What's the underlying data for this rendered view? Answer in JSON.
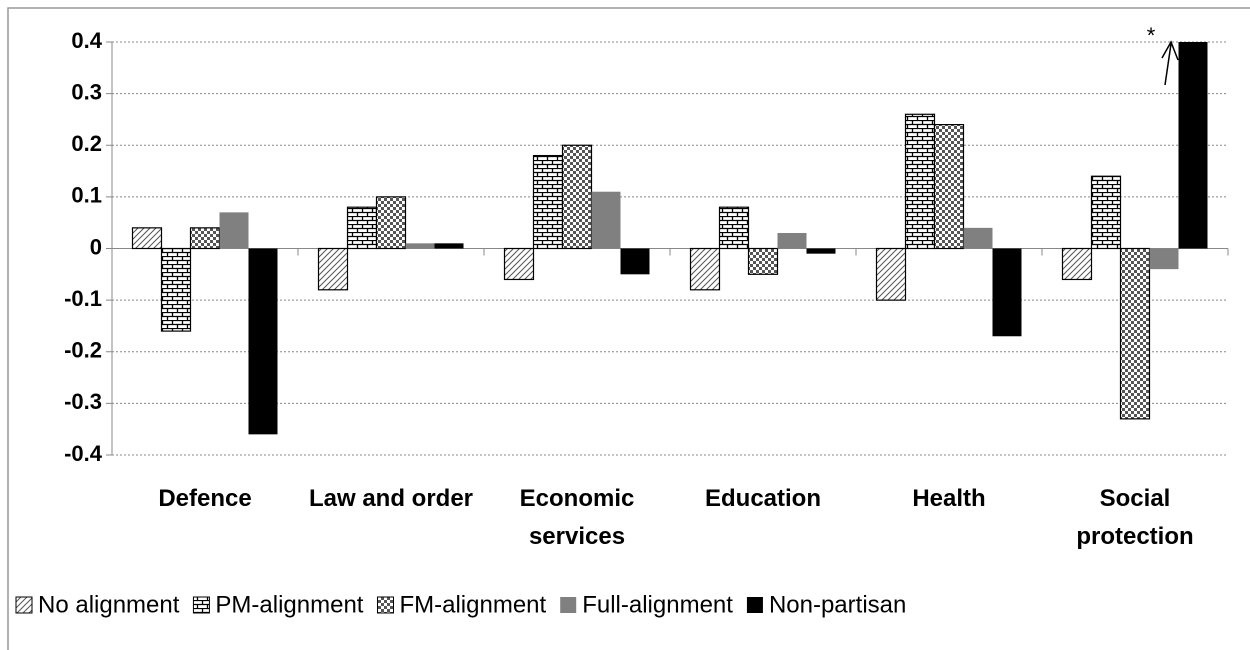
{
  "chart_data": {
    "type": "bar",
    "categories": [
      "Defence",
      "Law and order",
      "Economic services",
      "Education",
      "Health",
      "Social protection"
    ],
    "series": [
      {
        "name": "No alignment",
        "color": "#000000",
        "pattern": "diagonal",
        "values": [
          0.04,
          -0.08,
          -0.06,
          -0.08,
          -0.1,
          -0.06
        ]
      },
      {
        "name": "PM-alignment",
        "color": "#000000",
        "pattern": "brick",
        "values": [
          -0.16,
          0.08,
          0.18,
          0.08,
          0.26,
          0.14
        ]
      },
      {
        "name": "FM-alignment",
        "color": "#000000",
        "pattern": "checker",
        "values": [
          0.04,
          0.1,
          0.2,
          -0.05,
          0.24,
          -0.33
        ]
      },
      {
        "name": "Full-alignment",
        "color": "#808080",
        "pattern": "solid",
        "values": [
          0.07,
          0.01,
          0.11,
          0.03,
          0.04,
          -0.04
        ]
      },
      {
        "name": "Non-partisan",
        "color": "#000000",
        "pattern": "solid",
        "values": [
          -0.36,
          0.01,
          -0.05,
          -0.01,
          -0.17,
          0.4
        ]
      }
    ],
    "annotation": "*",
    "ylim": [
      -0.4,
      0.4
    ],
    "yticks": [
      -0.4,
      -0.3,
      -0.2,
      -0.1,
      0,
      0.1,
      0.2,
      0.3,
      0.4
    ],
    "grid": true,
    "legend": "bottom"
  }
}
